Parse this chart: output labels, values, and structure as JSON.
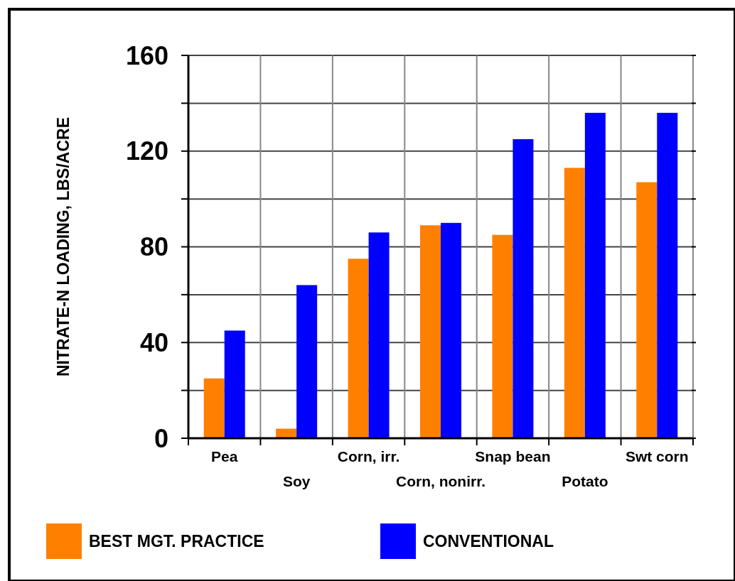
{
  "chart_data": {
    "type": "bar",
    "ylabel": "NITRATE-N LOADING, LBS/ACRE",
    "categories": [
      "Pea",
      "Soy",
      "Corn, irr.",
      "Corn, nonirr.",
      "Snap bean",
      "Potato",
      "Swt corn"
    ],
    "series": [
      {
        "name": "BEST MGT. PRACTICE",
        "color": "#ff8000",
        "values": [
          25,
          4,
          75,
          89,
          85,
          113,
          107
        ]
      },
      {
        "name": "CONVENTIONAL",
        "color": "#0000ff",
        "values": [
          45,
          64,
          86,
          90,
          125,
          136,
          136
        ]
      }
    ],
    "ylim": [
      0,
      160
    ],
    "yticks": [
      0,
      {
        "value": 20,
        "label": null
      },
      40,
      {
        "value": 60,
        "label": null
      },
      80,
      {
        "value": 100,
        "label": null
      },
      120,
      {
        "value": 140,
        "label": null
      },
      160
    ],
    "grid": true,
    "legend": "bottom"
  }
}
